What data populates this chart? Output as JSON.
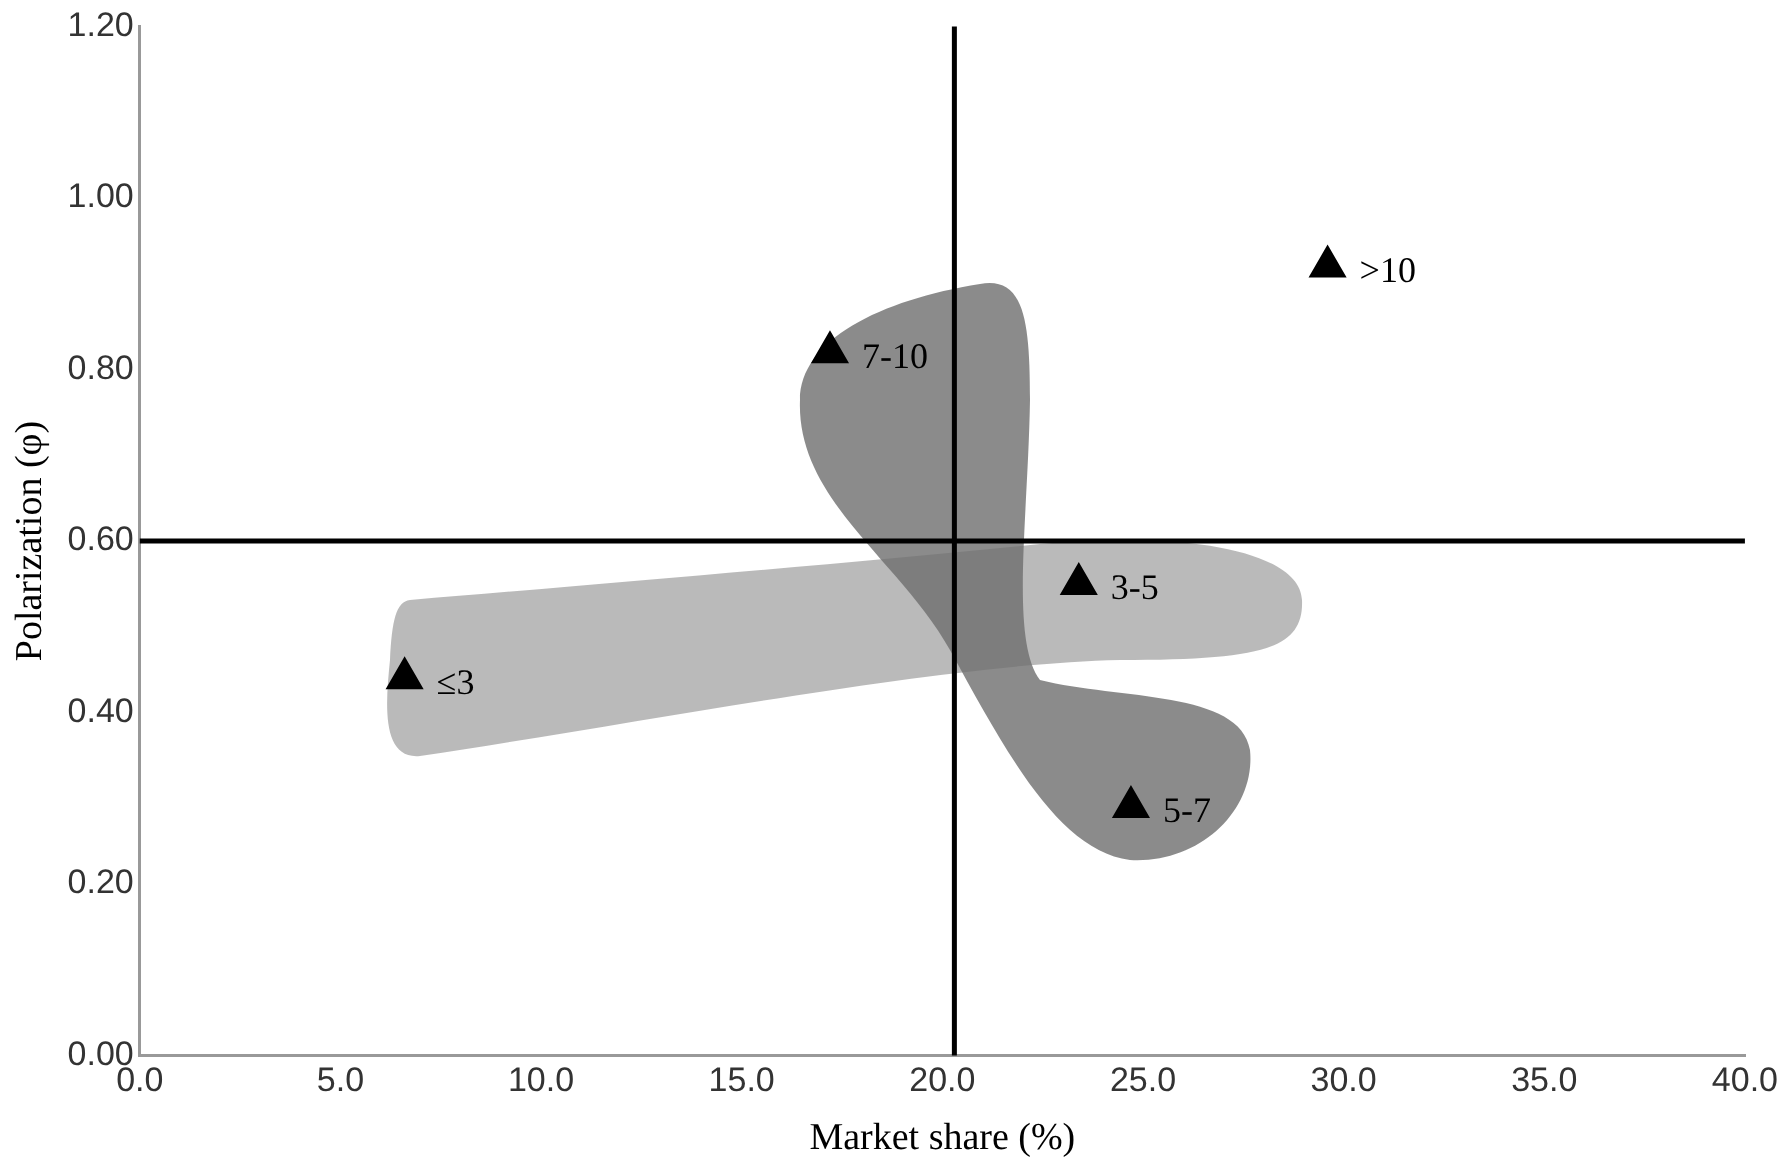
{
  "chart_data": {
    "type": "scatter",
    "xlabel": "Market share (%)",
    "ylabel": "Polarization (φ)",
    "x": [
      29.6,
      17.2,
      23.4,
      6.6,
      24.7
    ],
    "series": [
      {
        "color": "#000000",
        "values": [
          0.92,
          0.82,
          0.55,
          0.44,
          0.29
        ]
      }
    ],
    "xlim": [
      0,
      40
    ],
    "xticks": [
      {
        "value": 0,
        "label": "0.0"
      },
      {
        "value": 5,
        "label": "5.0"
      },
      {
        "value": 10,
        "label": "10.0"
      },
      {
        "value": 15,
        "label": "15.0"
      },
      {
        "value": 20,
        "label": "20.0"
      },
      {
        "value": 25,
        "label": "25.0"
      },
      {
        "value": 30,
        "label": "30.0"
      },
      {
        "value": 35,
        "label": "35.0"
      },
      {
        "value": 40,
        "label": "40.0"
      }
    ],
    "ylim": [
      0,
      1.2
    ],
    "yticks": [
      {
        "value": 0,
        "label": "0.00"
      },
      {
        "value": 0.2,
        "label": "0.20"
      },
      {
        "value": 0.4,
        "label": "0.40"
      },
      {
        "value": 0.6,
        "label": "0.60"
      },
      {
        "value": 0.8,
        "label": "0.80"
      },
      {
        "value": 1,
        "label": "1.00"
      },
      {
        "value": 1.2,
        "label": "1.20"
      }
    ],
    "ref_lines": [
      {
        "axis": "x",
        "value": 20.3,
        "color": "#000000"
      },
      {
        "axis": "y",
        "value": 0.6,
        "color": "#000000"
      }
    ],
    "annotations": [
      {
        "text": ">10",
        "x": 29.6,
        "y": 0.92
      },
      {
        "text": "7-10",
        "x": 17.2,
        "y": 0.82
      },
      {
        "text": "3-5",
        "x": 23.4,
        "y": 0.55
      },
      {
        "text": "≤3",
        "x": 6.6,
        "y": 0.44
      },
      {
        "text": "5-7",
        "x": 24.7,
        "y": 0.29
      }
    ],
    "grid": false,
    "legend": false,
    "marker": "triangle"
  }
}
